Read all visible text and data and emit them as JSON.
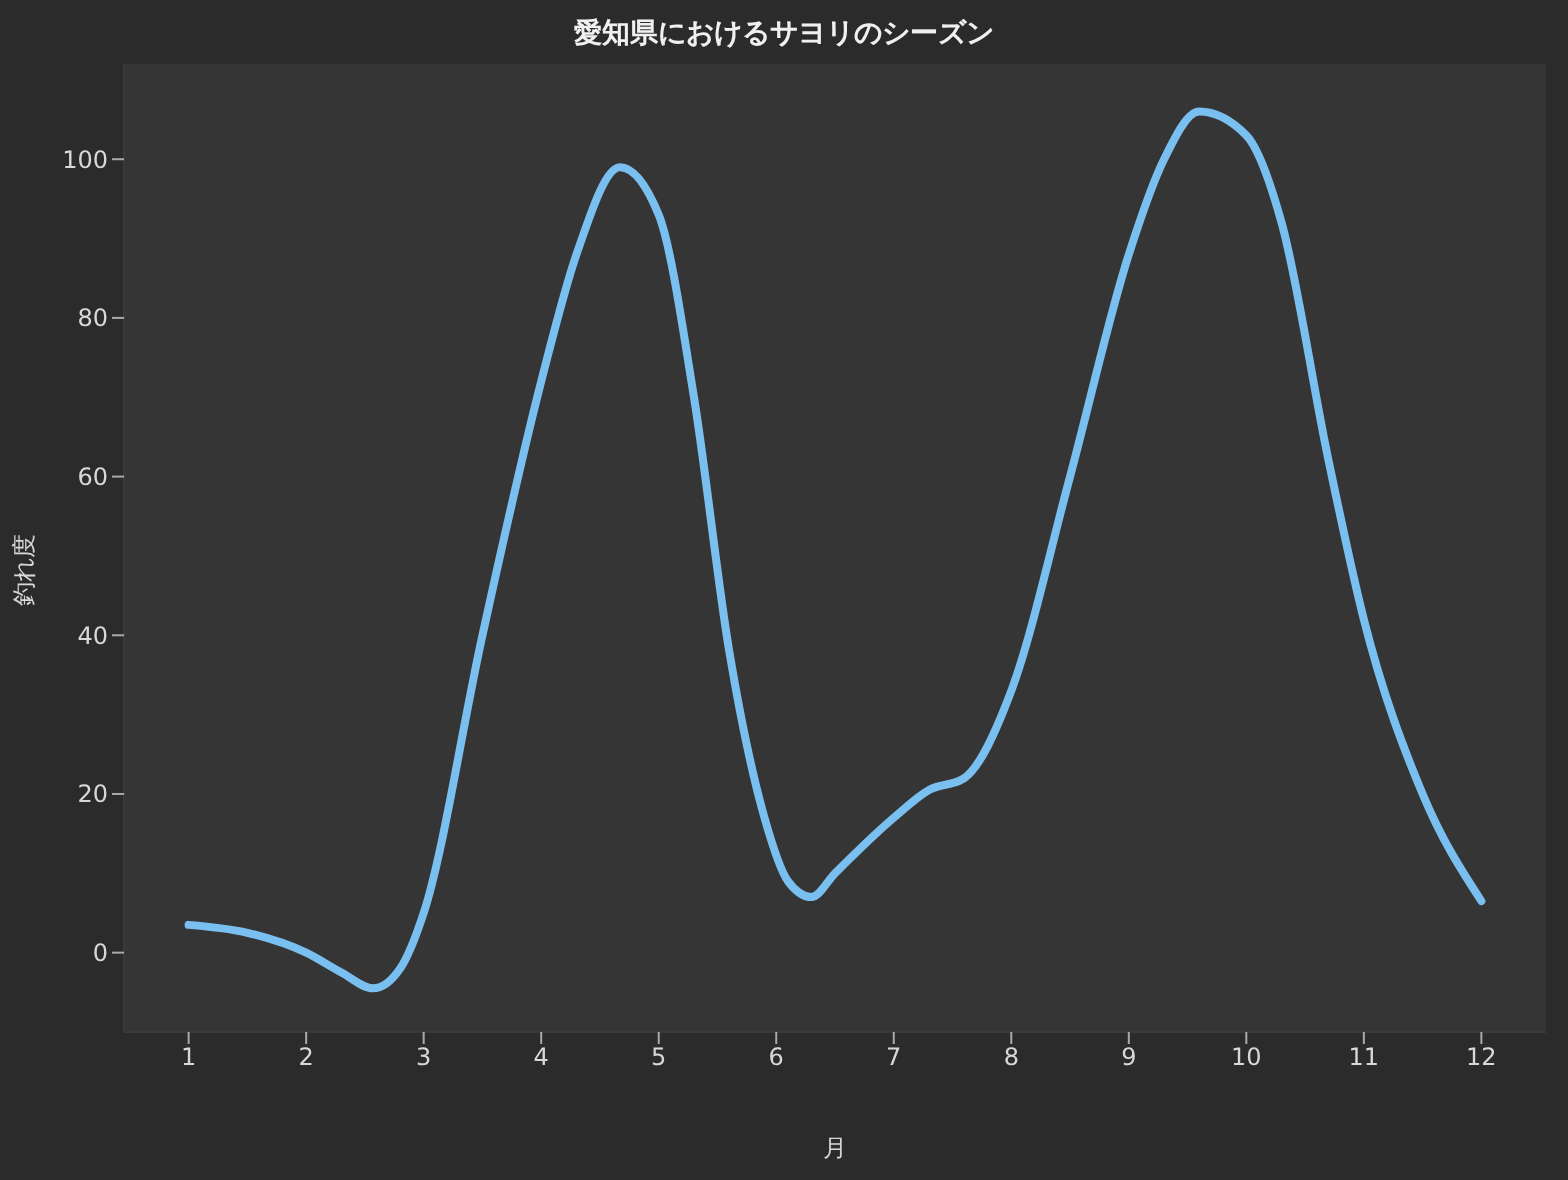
{
  "chart_data": {
    "type": "line",
    "title": "愛知県におけるサヨリのシーズン",
    "xlabel": "月",
    "ylabel": "釣れ度",
    "x": [
      1,
      1.5,
      2,
      2.3,
      2.57,
      2.8,
      3,
      3.5,
      4,
      4.3,
      4.67,
      5,
      5.3,
      5.6,
      5.9,
      6.1,
      6.3,
      6.5,
      7,
      7.3,
      7.6,
      8,
      8.5,
      9,
      9.3,
      9.6,
      10,
      10.3,
      10.7,
      11,
      11.5,
      12
    ],
    "series": [
      {
        "color": "#79c0f0",
        "values": [
          3.5,
          2.5,
          0,
          -2.5,
          -4.5,
          -2,
          5,
          40,
          72,
          88,
          99,
          93,
          70,
          38,
          17,
          9,
          7,
          10,
          17,
          20.5,
          22,
          33,
          60,
          88,
          100,
          106,
          103,
          92,
          62,
          42,
          20,
          6.5
        ]
      }
    ],
    "xlim": [
      0.45,
      12.55
    ],
    "xticks": [
      1,
      2,
      3,
      4,
      5,
      6,
      7,
      8,
      9,
      10,
      11,
      12
    ],
    "ylim": [
      -10,
      112
    ],
    "yticks": [
      0,
      20,
      40,
      60,
      80,
      100
    ],
    "legend": false,
    "marker": "none",
    "line_style": "solid"
  }
}
